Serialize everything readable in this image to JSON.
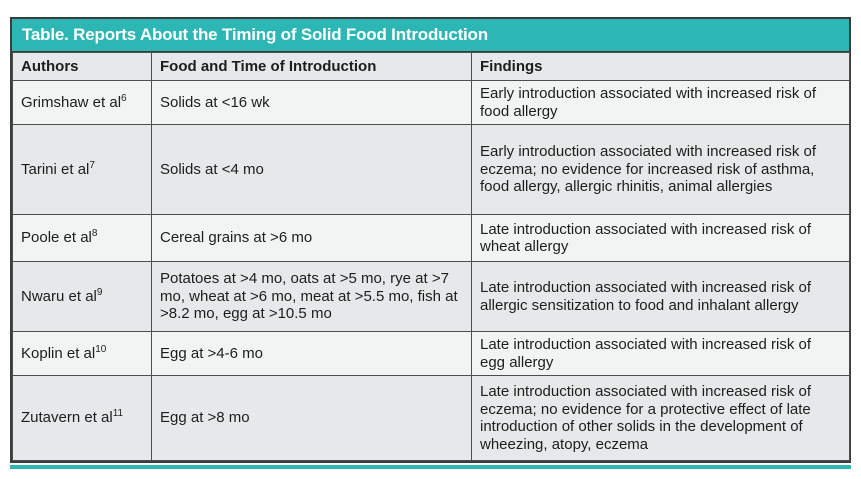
{
  "colors": {
    "accent_teal": "#2db7b4",
    "border_dark": "#3b3c3e",
    "border_inner": "#4d4e50",
    "row_light": "#f2f4f4",
    "row_dark": "#e6e9e9",
    "title_text": "#ffffff",
    "body_text": "#1d1d1d"
  },
  "table": {
    "title": "Table. Reports About the Timing of Solid Food Introduction",
    "columns": [
      "Authors",
      "Food and Time of Introduction",
      "Findings"
    ],
    "rows": [
      {
        "author": "Grimshaw et al",
        "ref": "6",
        "food": "Solids at <16 wk",
        "findings": "Early introduction associated with increased risk of food allergy"
      },
      {
        "author": "Tarini et al",
        "ref": "7",
        "food": "Solids at <4 mo",
        "findings": "Early introduction associated with increased risk of eczema; no evidence for increased risk of asthma, food allergy, allergic rhinitis, animal allergies"
      },
      {
        "author": "Poole et al",
        "ref": "8",
        "food": "Cereal grains at >6 mo",
        "findings": "Late introduction associated with increased risk of wheat allergy"
      },
      {
        "author": "Nwaru et al",
        "ref": "9",
        "food": "Potatoes at >4 mo, oats at >5 mo, rye at >7 mo, wheat at >6 mo, meat at >5.5 mo, fish at >8.2 mo, egg at >10.5 mo",
        "findings": "Late introduction associated with increased risk of allergic sensitization to food and inhalant allergy"
      },
      {
        "author": "Koplin et al",
        "ref": "10",
        "food": "Egg at >4-6 mo",
        "findings": "Late introduction associated with increased risk of egg allergy"
      },
      {
        "author": "Zutavern et al",
        "ref": "11",
        "food": "Egg at >8 mo",
        "findings": "Late introduction associated with increased risk of eczema; no evidence for a protective effect of late introduction of other solids in the development of wheezing, atopy, eczema"
      }
    ]
  }
}
